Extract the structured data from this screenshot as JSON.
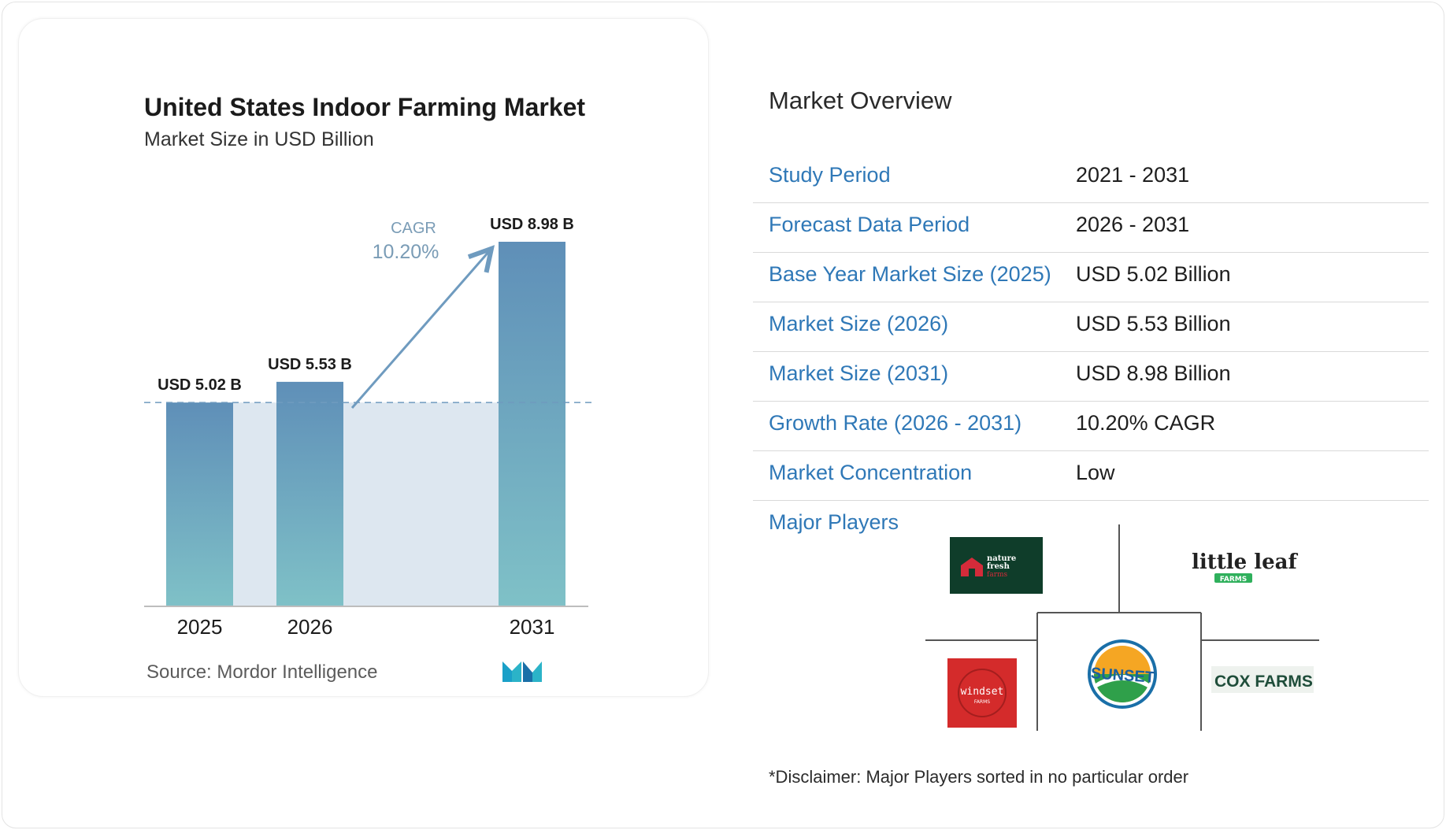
{
  "chart_data": {
    "type": "bar",
    "title": "United States Indoor Farming Market",
    "subtitle": "Market Size in USD Billion",
    "categories": [
      "2025",
      "2026",
      "2031"
    ],
    "values": [
      5.02,
      5.53,
      8.98
    ],
    "data_labels": [
      "USD 5.02 B",
      "USD 5.53 B",
      "USD 8.98 B"
    ],
    "cagr_label": "CAGR",
    "cagr_value": "10.20%",
    "baseline_reference": 5.02,
    "colors": {
      "bar_top": "#5f8fb8",
      "bar_bottom": "#7fc1c7",
      "band": "#dde7f0",
      "arrow": "#6f9bbf",
      "cagr_text": "#7a9cb6"
    }
  },
  "source": "Source: Mordor Intelligence",
  "logo": "MI-logo",
  "overview": {
    "title": "Market Overview",
    "rows": [
      {
        "label": "Study Period",
        "value": "2021 - 2031"
      },
      {
        "label": "Forecast Data Period",
        "value": "2026 - 2031"
      },
      {
        "label": "Base Year Market Size (2025)",
        "value": "USD 5.02 Billion"
      },
      {
        "label": "Market Size (2026)",
        "value": "USD 5.53 Billion"
      },
      {
        "label": "Market Size (2031)",
        "value": "USD 8.98 Billion"
      },
      {
        "label": "Growth Rate (2026 - 2031)",
        "value": "10.20% CAGR"
      },
      {
        "label": "Market Concentration",
        "value": "Low"
      }
    ]
  },
  "players": {
    "label": "Major Players",
    "logos": [
      "nature fresh farms",
      "little leaf FARMS",
      "windset FARMS",
      "SUNSET",
      "COX FARMS"
    ]
  },
  "disclaimer": "*Disclaimer: Major Players sorted in no particular order"
}
